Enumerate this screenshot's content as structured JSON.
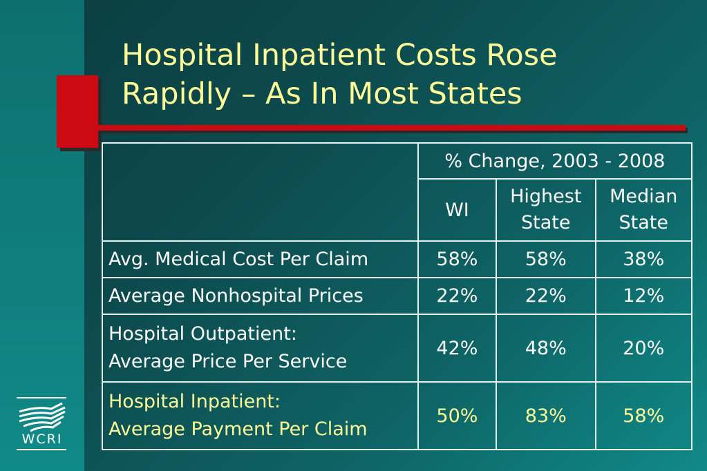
{
  "slide": {
    "title_line1": "Hospital Inpatient Costs Rose",
    "title_line2": "Rapidly – As In Most States"
  },
  "table": {
    "group_header": "% Change, 2003 - 2008",
    "columns": [
      "WI",
      "Highest State",
      "Median State"
    ],
    "columns_display": [
      {
        "line1": "WI",
        "line2": ""
      },
      {
        "line1": "Highest",
        "line2": "State"
      },
      {
        "line1": "Median",
        "line2": "State"
      }
    ],
    "rows": [
      {
        "label_line1": "Avg. Medical Cost Per Claim",
        "label_line2": "",
        "values": [
          "58%",
          "58%",
          "38%"
        ]
      },
      {
        "label_line1": "Average Nonhospital Prices",
        "label_line2": "",
        "values": [
          "22%",
          "22%",
          "12%"
        ]
      },
      {
        "label_line1": "Hospital Outpatient:",
        "label_line2": "Average Price Per Service",
        "values": [
          "42%",
          "48%",
          "20%"
        ]
      },
      {
        "label_line1": "Hospital Inpatient:",
        "label_line2": "Average Payment Per Claim",
        "values": [
          "50%",
          "83%",
          "58%"
        ]
      }
    ]
  },
  "logo": {
    "text": "WCRI",
    "icon": "wcri-wave-logo"
  },
  "colors": {
    "title": "#ffff99",
    "accent_red": "#cc0a14",
    "highlight_row_text": "#ffff99",
    "table_text": "#ffffff"
  }
}
